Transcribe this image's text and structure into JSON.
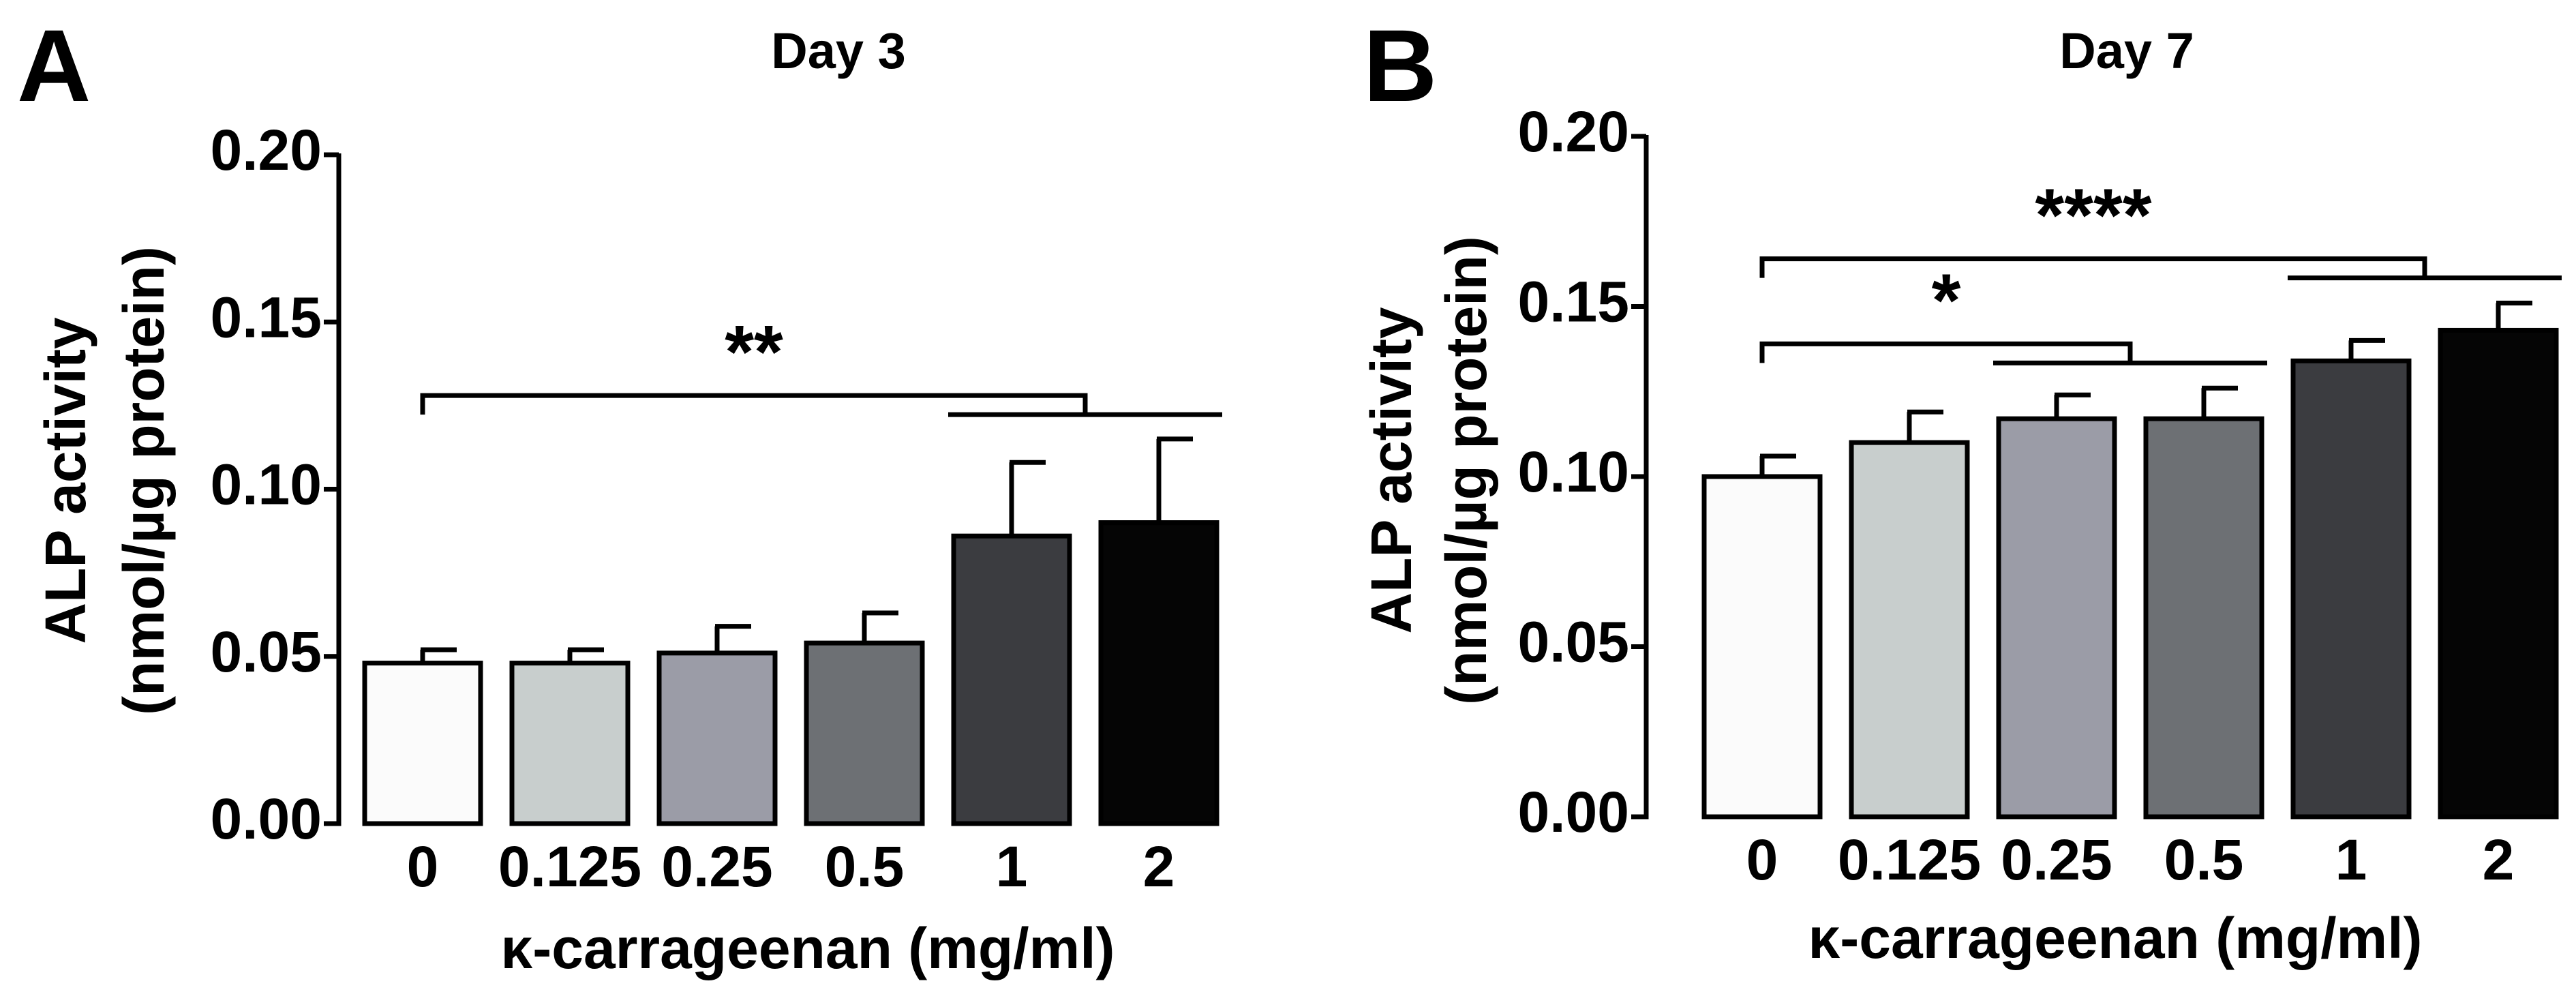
{
  "chart_data": [
    {
      "type": "bar",
      "panel": "A",
      "title": "Day 3",
      "xlabel": "κ-carrageenan (mg/ml)",
      "ylabel_line1": "ALP activity",
      "ylabel_line2": "(nmol/µg protein)",
      "ylim": [
        0,
        0.2
      ],
      "yticks": [
        "0.00",
        "0.05",
        "0.10",
        "0.15",
        "0.20"
      ],
      "categories": [
        "0",
        "0.125",
        "0.25",
        "0.5",
        "1",
        "2"
      ],
      "values": [
        0.048,
        0.048,
        0.051,
        0.054,
        0.086,
        0.09
      ],
      "errors": [
        0.004,
        0.004,
        0.008,
        0.009,
        0.022,
        0.025
      ],
      "bar_colors": [
        "#fbfbfb",
        "#c8cecd",
        "#9b9ca7",
        "#6d7074",
        "#3b3c40",
        "#050505"
      ],
      "significance": [
        {
          "label": "**",
          "from_category": 0,
          "to_categories": [
            4,
            5
          ],
          "level": 0.128
        }
      ]
    },
    {
      "type": "bar",
      "panel": "B",
      "title": "Day 7",
      "xlabel": "κ-carrageenan (mg/ml)",
      "ylabel_line1": "ALP activity",
      "ylabel_line2": "(nmol/µg protein)",
      "ylim": [
        0,
        0.2
      ],
      "yticks": [
        "0.00",
        "0.05",
        "0.10",
        "0.15",
        "0.20"
      ],
      "categories": [
        "0",
        "0.125",
        "0.25",
        "0.5",
        "1",
        "2"
      ],
      "values": [
        0.1,
        0.11,
        0.117,
        0.117,
        0.134,
        0.143
      ],
      "errors": [
        0.006,
        0.009,
        0.007,
        0.009,
        0.006,
        0.008
      ],
      "bar_colors": [
        "#fbfbfb",
        "#c8cecd",
        "#9b9ca7",
        "#6d7074",
        "#3b3c40",
        "#050505"
      ],
      "significance": [
        {
          "label": "*",
          "from_category": 0,
          "to_categories": [
            2,
            3
          ],
          "level": 0.139
        },
        {
          "label": "****",
          "from_category": 0,
          "to_categories": [
            4,
            5
          ],
          "level": 0.164
        }
      ]
    }
  ]
}
